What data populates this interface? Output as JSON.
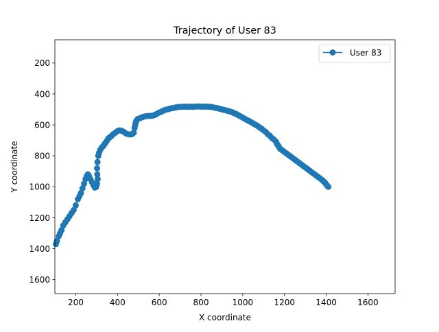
{
  "colors": {
    "series": "#1f77b4",
    "axes": "#000000",
    "legend_border": "#cccccc",
    "background": "#ffffff"
  },
  "chart_data": {
    "type": "line",
    "title": "Trajectory of User 83",
    "xlabel": "X coordinate",
    "ylabel": "Y coordinate",
    "xlim": [
      100,
      1730
    ],
    "ylim": [
      1690,
      50
    ],
    "y_inverted": true,
    "grid": false,
    "legend_position": "upper right",
    "marker": "circle",
    "xticks": [
      200,
      400,
      600,
      800,
      1000,
      1200,
      1400,
      1600
    ],
    "yticks": [
      200,
      400,
      600,
      800,
      1000,
      1200,
      1400,
      1600
    ],
    "series": [
      {
        "name": "User 83",
        "x": [
          105,
          110,
          118,
          125,
          132,
          140,
          150,
          160,
          170,
          180,
          190,
          200,
          210,
          218,
          225,
          232,
          240,
          247,
          253,
          258,
          263,
          270,
          278,
          285,
          292,
          298,
          302,
          305,
          303,
          302,
          304,
          308,
          312,
          318,
          325,
          333,
          340,
          348,
          355,
          363,
          372,
          380,
          390,
          400,
          410,
          420,
          430,
          440,
          450,
          460,
          470,
          478,
          482,
          485,
          487,
          490,
          495,
          500,
          510,
          520,
          530,
          540,
          550,
          560,
          570,
          580,
          590,
          600,
          610,
          620,
          630,
          640,
          650,
          660,
          670,
          680,
          690,
          700,
          710,
          720,
          730,
          740,
          750,
          760,
          770,
          780,
          790,
          800,
          810,
          820,
          830,
          840,
          850,
          860,
          870,
          880,
          890,
          900,
          910,
          920,
          930,
          940,
          950,
          960,
          970,
          980,
          990,
          1000,
          1010,
          1020,
          1030,
          1040,
          1050,
          1060,
          1070,
          1080,
          1090,
          1100,
          1110,
          1120,
          1130,
          1140,
          1150,
          1160,
          1165,
          1170,
          1175,
          1180,
          1190,
          1200,
          1210,
          1220,
          1230,
          1240,
          1250,
          1260,
          1270,
          1280,
          1290,
          1300,
          1310,
          1320,
          1330,
          1340,
          1350,
          1360,
          1370,
          1380,
          1385,
          1390,
          1395,
          1400,
          1405,
          1410
        ],
        "y": [
          1370,
          1350,
          1320,
          1300,
          1280,
          1250,
          1230,
          1210,
          1190,
          1170,
          1150,
          1120,
          1080,
          1060,
          1040,
          1010,
          980,
          950,
          930,
          920,
          930,
          950,
          970,
          990,
          1005,
          1000,
          980,
          950,
          920,
          880,
          840,
          800,
          780,
          760,
          745,
          735,
          720,
          705,
          690,
          680,
          670,
          660,
          650,
          640,
          635,
          638,
          645,
          655,
          660,
          662,
          660,
          650,
          620,
          600,
          585,
          575,
          565,
          560,
          555,
          550,
          545,
          543,
          542,
          542,
          540,
          535,
          528,
          520,
          515,
          508,
          502,
          500,
          495,
          492,
          490,
          487,
          485,
          483,
          483,
          482,
          482,
          483,
          482,
          483,
          482,
          481,
          481,
          482,
          482,
          482,
          482,
          483,
          484,
          487,
          490,
          492,
          496,
          500,
          503,
          506,
          510,
          514,
          518,
          525,
          530,
          538,
          545,
          553,
          560,
          568,
          575,
          582,
          590,
          598,
          606,
          615,
          625,
          635,
          645,
          660,
          670,
          685,
          695,
          710,
          725,
          735,
          745,
          755,
          765,
          775,
          785,
          795,
          805,
          815,
          825,
          835,
          845,
          855,
          865,
          875,
          885,
          895,
          905,
          915,
          925,
          935,
          945,
          955,
          962,
          968,
          975,
          985,
          993,
          1000
        ]
      }
    ]
  }
}
